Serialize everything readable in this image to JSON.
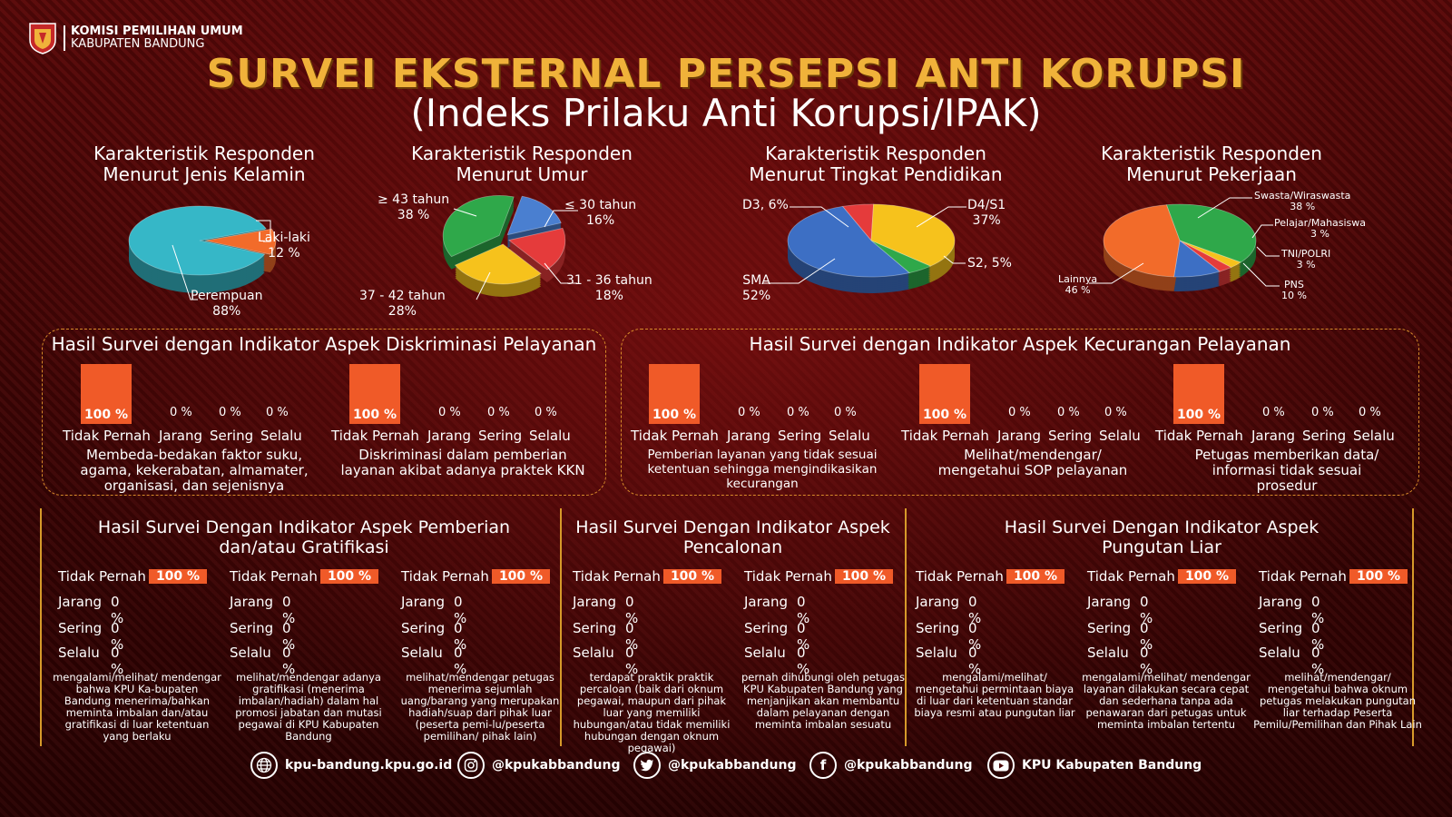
{
  "header": {
    "org_line1": "KOMISI PEMILIHAN UMUM",
    "org_line2": "KABUPATEN BANDUNG",
    "title": "SURVEI EKSTERNAL PERSEPSI ANTI KORUPSI",
    "subtitle": "(Indeks Prilaku Anti Korupsi/IPAK)"
  },
  "colors": {
    "accent": "#f05a28",
    "gold": "#f0b23a",
    "border": "#d68a2a",
    "background": "#4a0606"
  },
  "charts": [
    {
      "title1": "Karakteristik Responden",
      "title2": "Menurut Jenis Kelamin",
      "labels": [
        {
          "text1": "Laki-laki",
          "text2": "12 %"
        },
        {
          "text1": "Perempuan",
          "text2": "88%"
        }
      ]
    },
    {
      "title1": "Karakteristik Responden",
      "title2": "Menurut Umur",
      "labels": [
        {
          "text1": "≥ 43 tahun",
          "text2": "38 %"
        },
        {
          "text1": "≤ 30 tahun",
          "text2": "16%"
        },
        {
          "text1": "31 - 36 tahun",
          "text2": "18%"
        },
        {
          "text1": "37 - 42 tahun",
          "text2": "28%"
        }
      ]
    },
    {
      "title1": "Karakteristik Responden",
      "title2": "Menurut Tingkat Pendidikan",
      "labels": [
        {
          "text1": "D3, 6%",
          "text2": ""
        },
        {
          "text1": "D4/S1",
          "text2": "37%"
        },
        {
          "text1": "S2, 5%",
          "text2": ""
        },
        {
          "text1": "SMA",
          "text2": "52%"
        }
      ]
    },
    {
      "title1": "Karakteristik Responden",
      "title2": "Menurut Pekerjaan",
      "labels": [
        {
          "text1": "Swasta/Wiraswasta",
          "text2": "38 %"
        },
        {
          "text1": "Pelajar/Mahasiswa",
          "text2": "3 %"
        },
        {
          "text1": "TNI/POLRI",
          "text2": "3 %"
        },
        {
          "text1": "PNS",
          "text2": "10 %"
        },
        {
          "text1": "Lainnya",
          "text2": "46 %"
        }
      ]
    }
  ],
  "chart_data": [
    {
      "type": "pie",
      "title": "Karakteristik Responden Menurut Jenis Kelamin",
      "labels": [
        "Laki-laki",
        "Perempuan"
      ],
      "values": [
        12,
        88
      ]
    },
    {
      "type": "pie",
      "title": "Karakteristik Responden Menurut Umur",
      "labels": [
        "≤ 30 tahun",
        "31 - 36 tahun",
        "37 - 42 tahun",
        "≥ 43 tahun"
      ],
      "values": [
        16,
        18,
        28,
        38
      ]
    },
    {
      "type": "pie",
      "title": "Karakteristik Responden Menurut Tingkat Pendidikan",
      "labels": [
        "D3",
        "D4/S1",
        "S2",
        "SMA"
      ],
      "values": [
        6,
        37,
        5,
        52
      ]
    },
    {
      "type": "pie",
      "title": "Karakteristik Responden Menurut Pekerjaan",
      "labels": [
        "Swasta/Wiraswasta",
        "Pelajar/Mahasiswa",
        "TNI/POLRI",
        "PNS",
        "Lainnya"
      ],
      "values": [
        38,
        3,
        3,
        10,
        46
      ]
    }
  ],
  "scale": {
    "tidak": "Tidak Pernah",
    "jarang": "Jarang",
    "sering": "Sering",
    "selalu": "Selalu",
    "hundred": "100 %",
    "zero": "0 %"
  },
  "diskriminasi": {
    "title": "Hasil Survei dengan Indikator Aspek Diskriminasi Pelayanan",
    "items": [
      {
        "desc": "Membeda-bedakan faktor suku, agama, kekerabatan, almamater, organisasi, dan sejenisnya"
      },
      {
        "desc": "Diskriminasi dalam pemberian layanan akibat adanya praktek KKN"
      }
    ]
  },
  "kecurangan": {
    "title": "Hasil Survei dengan Indikator Aspek Kecurangan Pelayanan",
    "items": [
      {
        "desc": "Pemberian layanan yang tidak sesuai ketentuan sehingga mengindikasikan kecurangan"
      },
      {
        "desc": "Melihat/mendengar/ mengetahui SOP pelayanan"
      },
      {
        "desc": "Petugas memberikan data/ informasi tidak sesuai prosedur"
      }
    ]
  },
  "gratifikasi": {
    "title1": "Hasil Survei Dengan Indikator Aspek Pemberian",
    "title2": "dan/atau Gratifikasi",
    "items": [
      {
        "note": "mengalami/melihat/ mendengar bahwa KPU Ka-bupaten Bandung menerima/bahkan meminta imbalan dan/atau gratifikasi di luar ketentuan yang berlaku"
      },
      {
        "note": "melihat/mendengar adanya gratifikasi (menerima imbalan/hadiah) dalam hal promosi jabatan dan mutasi pegawai di KPU Kabupaten Bandung"
      },
      {
        "note": "melihat/mendengar petugas menerima sejumlah uang/barang yang merupakan hadiah/suap dari pihak luar (peserta pemi-lu/peserta pemilihan/ pihak lain)"
      }
    ]
  },
  "pencaloan": {
    "title1": "Hasil Survei Dengan Indikator Aspek",
    "title2": "Pencalonan",
    "items": [
      {
        "note": "terdapat praktik praktik percaloan (baik dari oknum pegawai, maupun dari pihak luar yang memiliki hubungan/atau tidak memiliki hubungan dengan oknum pegawai)"
      },
      {
        "note": "pernah dihubungi oleh petugas KPU Kabupaten Bandung yang menjanjikan akan membantu dalam pelayanan dengan meminta imbalan sesuatu"
      }
    ]
  },
  "pungutan": {
    "title1": "Hasil Survei Dengan Indikator Aspek",
    "title2": "Pungutan Liar",
    "items": [
      {
        "note": "mengalami/melihat/ mengetahui permintaan biaya di luar dari ketentuan standar biaya resmi atau pungutan liar"
      },
      {
        "note": "mengalami/melihat/ mendengar layanan dilakukan secara cepat dan sederhana tanpa ada penawaran dari petugas untuk meminta imbalan tertentu"
      },
      {
        "note": "melihat/mendengar/ mengetahui bahwa oknum petugas melakukan pungutan liar terhadap Peserta Pemilu/Pemilihan dan Pihak Lain"
      }
    ]
  },
  "footer": {
    "website": "kpu-bandung.kpu.go.id",
    "instagram": "@kpukabbandung",
    "twitter": "@kpukabbandung",
    "facebook": "@kpukabbandung",
    "youtube": "KPU Kabupaten Bandung"
  }
}
